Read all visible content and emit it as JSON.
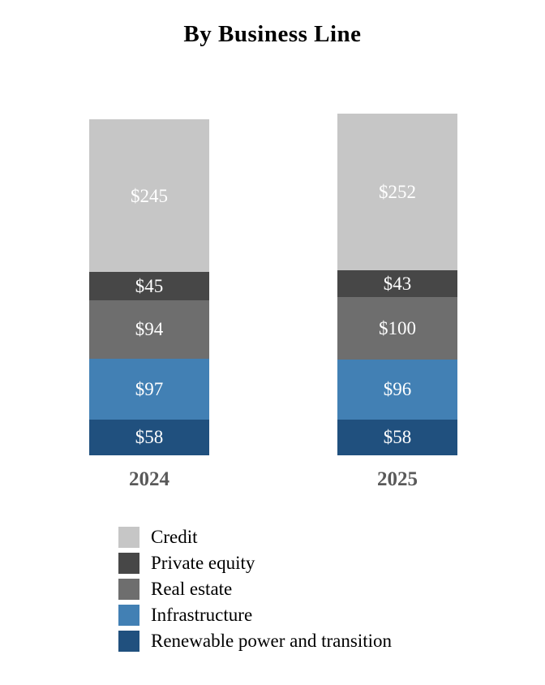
{
  "chart_data": {
    "type": "bar",
    "stacked": true,
    "title": "By Business Line",
    "categories": [
      "2024",
      "2025"
    ],
    "series": [
      {
        "name": "Credit",
        "color": "#C6C6C6",
        "values": [
          245,
          252
        ]
      },
      {
        "name": "Private equity",
        "color": "#474747",
        "values": [
          45,
          43
        ]
      },
      {
        "name": "Real estate",
        "color": "#6E6E6E",
        "values": [
          94,
          100
        ]
      },
      {
        "name": "Infrastructure",
        "color": "#4280B4",
        "values": [
          97,
          96
        ]
      },
      {
        "name": "Renewable power and transition",
        "color": "#20507E",
        "values": [
          58,
          58
        ]
      }
    ],
    "value_prefix": "$",
    "value_label_color": "#FFFFFF",
    "category_label_color": "#595959",
    "legend_position": "bottom-left",
    "grid": false,
    "axes_shown": false,
    "totals": [
      539,
      549
    ]
  }
}
